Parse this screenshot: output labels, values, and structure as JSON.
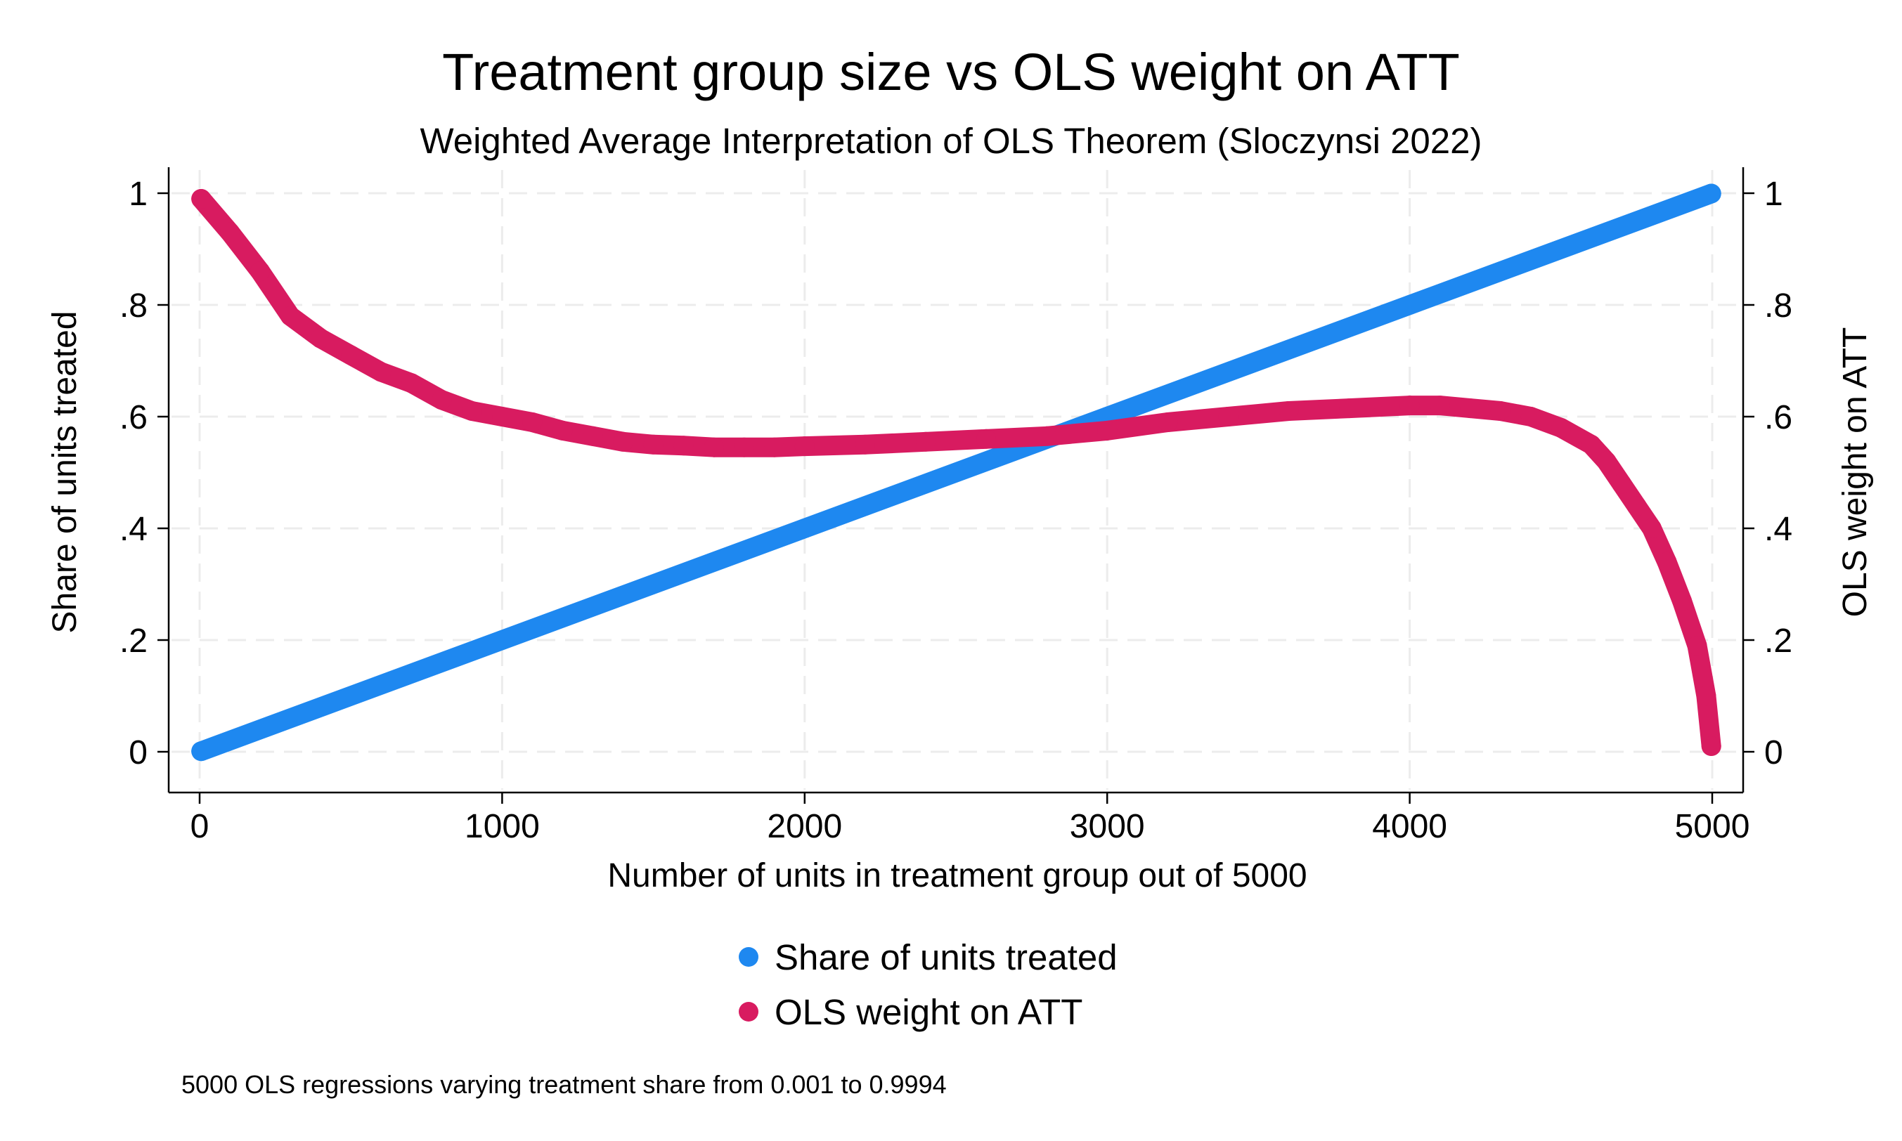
{
  "chart_data": {
    "type": "scatter",
    "title": "Treatment group size vs OLS weight on ATT",
    "subtitle": "Weighted Average Interpretation of OLS Theorem  (Sloczynsi 2022)",
    "xlabel": "Number of units in treatment group out of 5000",
    "ylabel_left": "Share of units treated",
    "ylabel_right": "OLS weight on ATT",
    "note": "5000 OLS regressions varying treatment share from 0.001 to 0.9994",
    "xlim": [
      0,
      5000
    ],
    "ylim": [
      0,
      1
    ],
    "x_ticks": [
      "0",
      "1000",
      "2000",
      "3000",
      "4000",
      "5000"
    ],
    "y_ticks_left": [
      "0",
      ".2",
      ".4",
      ".6",
      ".8",
      "1"
    ],
    "y_ticks_right": [
      "0",
      ".2",
      ".4",
      ".6",
      ".8",
      "1"
    ],
    "grid": true,
    "legend_position": "bottom",
    "series": [
      {
        "name": "Share of units treated",
        "color": "#1e88f0",
        "axis": "left",
        "x": [
          5,
          1000,
          2000,
          3000,
          4000,
          4997
        ],
        "y": [
          0.001,
          0.2,
          0.4,
          0.6,
          0.8,
          0.9994
        ]
      },
      {
        "name": "OLS weight on ATT",
        "color": "#d81b60",
        "axis": "right",
        "x": [
          5,
          100,
          200,
          300,
          400,
          500,
          600,
          700,
          800,
          900,
          1000,
          1100,
          1200,
          1300,
          1400,
          1500,
          1600,
          1700,
          1800,
          1900,
          2000,
          2200,
          2400,
          2600,
          2800,
          3000,
          3200,
          3400,
          3600,
          3800,
          4000,
          4100,
          4200,
          4300,
          4400,
          4500,
          4600,
          4650,
          4700,
          4750,
          4800,
          4850,
          4900,
          4950,
          4980,
          4997
        ],
        "y": [
          0.99,
          0.93,
          0.86,
          0.78,
          0.74,
          0.71,
          0.68,
          0.66,
          0.63,
          0.61,
          0.6,
          0.59,
          0.575,
          0.565,
          0.555,
          0.55,
          0.548,
          0.545,
          0.545,
          0.545,
          0.547,
          0.55,
          0.555,
          0.56,
          0.565,
          0.575,
          0.59,
          0.6,
          0.61,
          0.615,
          0.62,
          0.62,
          0.615,
          0.61,
          0.6,
          0.58,
          0.55,
          0.52,
          0.48,
          0.44,
          0.4,
          0.34,
          0.27,
          0.19,
          0.1,
          0.01
        ]
      }
    ]
  }
}
